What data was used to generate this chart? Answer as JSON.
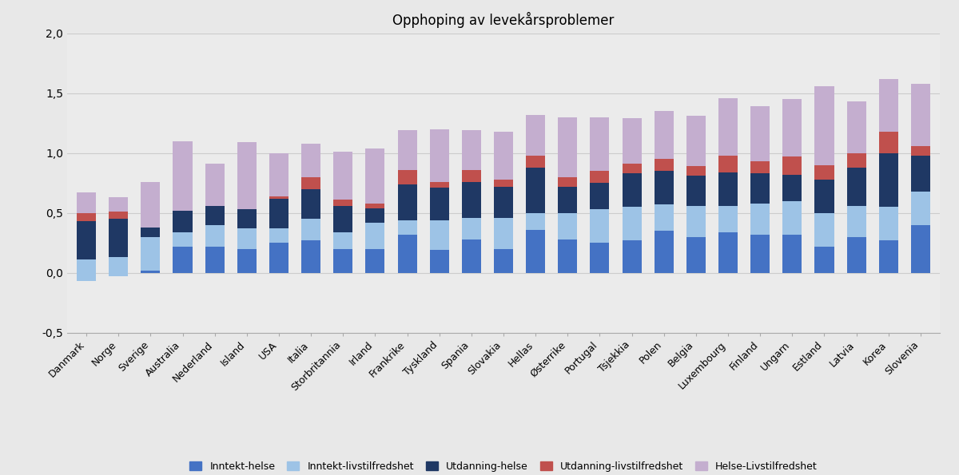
{
  "title": "Opphoping av levekårsproblemer",
  "categories": [
    "Danmark",
    "Norge",
    "Sverige",
    "Australia",
    "Nederland",
    "Island",
    "USA",
    "Italia",
    "Storbritannia",
    "Irland",
    "Frankrike",
    "Tyskland",
    "Spania",
    "Slovakia",
    "Hellas",
    "Østerrike",
    "Portugal",
    "Tsjekkia",
    "Polen",
    "Belgia",
    "Luxembourg",
    "Finland",
    "Ungarn",
    "Estland",
    "Latvia",
    "Korea",
    "Slovenia"
  ],
  "series": {
    "Inntekt-helse": [
      -0.07,
      -0.03,
      0.02,
      0.22,
      0.22,
      0.2,
      0.25,
      0.27,
      0.2,
      0.2,
      0.32,
      0.19,
      0.28,
      0.2,
      0.36,
      0.28,
      0.25,
      0.27,
      0.35,
      0.3,
      0.34,
      0.32,
      0.32,
      0.22,
      0.3,
      0.27,
      0.4
    ],
    "Inntekt-livstilfredshet": [
      0.18,
      0.16,
      0.28,
      0.12,
      0.18,
      0.17,
      0.12,
      0.18,
      0.14,
      0.22,
      0.12,
      0.25,
      0.18,
      0.26,
      0.14,
      0.22,
      0.28,
      0.28,
      0.22,
      0.26,
      0.22,
      0.26,
      0.28,
      0.28,
      0.26,
      0.28,
      0.28
    ],
    "Utdanning-helse": [
      0.32,
      0.32,
      0.1,
      0.22,
      0.16,
      0.16,
      0.25,
      0.25,
      0.22,
      0.12,
      0.3,
      0.27,
      0.3,
      0.26,
      0.38,
      0.22,
      0.22,
      0.28,
      0.28,
      0.25,
      0.28,
      0.25,
      0.22,
      0.28,
      0.32,
      0.45,
      0.3
    ],
    "Utdanning-livstilfredshet": [
      0.07,
      0.06,
      -0.02,
      -0.04,
      0.0,
      0.0,
      0.02,
      0.1,
      0.05,
      0.04,
      0.12,
      0.05,
      0.1,
      0.06,
      0.1,
      0.08,
      0.1,
      0.08,
      0.1,
      0.08,
      0.14,
      0.1,
      0.15,
      0.12,
      0.12,
      0.18,
      0.08
    ],
    "Helse-Livstilfredshet": [
      0.17,
      0.12,
      0.38,
      0.58,
      0.35,
      0.56,
      0.36,
      0.28,
      0.4,
      0.46,
      0.33,
      0.44,
      0.33,
      0.4,
      0.34,
      0.5,
      0.45,
      0.38,
      0.4,
      0.42,
      0.48,
      0.46,
      0.48,
      0.66,
      0.43,
      0.44,
      0.52
    ]
  },
  "colors": {
    "Inntekt-helse": "#4472C4",
    "Inntekt-livstilfredshet": "#9DC3E6",
    "Utdanning-helse": "#1F3864",
    "Utdanning-livstilfredshet": "#C0504D",
    "Helse-Livstilfredshet": "#C4AECF"
  },
  "ylim": [
    -0.5,
    2.0
  ],
  "yticks": [
    -0.5,
    0.0,
    0.5,
    1.0,
    1.5,
    2.0
  ],
  "background_color": "#E8E8E8",
  "plot_bg_color": "#EBEBEB"
}
